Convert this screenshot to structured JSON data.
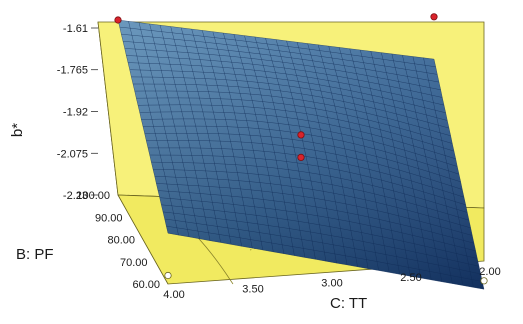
{
  "chart_data": {
    "type": "surface",
    "zlabel": "b*",
    "ylabel": "B: PF",
    "xlabel": "C: TT",
    "z_ticks": [
      "-1.61",
      "-1.765",
      "-1.92",
      "-2.075",
      "-2.23"
    ],
    "y_ticks": [
      "100.00",
      "90.00",
      "80.00",
      "70.00",
      "60.00"
    ],
    "x_ticks": [
      "4.00",
      "3.50",
      "3.00",
      "2.50",
      "2.00"
    ],
    "x_range": [
      2.0,
      4.0
    ],
    "y_range": [
      60.0,
      100.0
    ],
    "z_range": [
      -2.23,
      -1.61
    ],
    "surface_corners": {
      "tt_4_pf_100": -1.61,
      "tt_2_pf_100": -1.83,
      "tt_4_pf_60": -2.05,
      "tt_2_pf_60": -2.33
    },
    "design_points": [
      {
        "tt": 4.0,
        "pf": 100.0,
        "b": -1.61,
        "position": "above-surface"
      },
      {
        "tt": 2.0,
        "pf": 100.0,
        "b": -1.68,
        "position": "above-surface"
      },
      {
        "tt": 3.0,
        "pf": 80.0,
        "b": -1.9,
        "position": "above-surface"
      },
      {
        "tt": 3.0,
        "pf": 80.0,
        "b": -1.98,
        "position": "above-surface"
      },
      {
        "tt": 4.0,
        "pf": 60.0,
        "b": -2.2,
        "position": "below-surface"
      },
      {
        "tt": 2.0,
        "pf": 60.0,
        "b": -2.3,
        "position": "below-surface"
      }
    ],
    "colors": {
      "walls": "#f7f17a",
      "floor": "#f1ea60",
      "surface_high": "#4a7ba5",
      "surface_low": "#1d3f7a",
      "point_above": "#d9232b",
      "point_below": "#ffffff"
    },
    "grid": false,
    "legend": "none"
  }
}
